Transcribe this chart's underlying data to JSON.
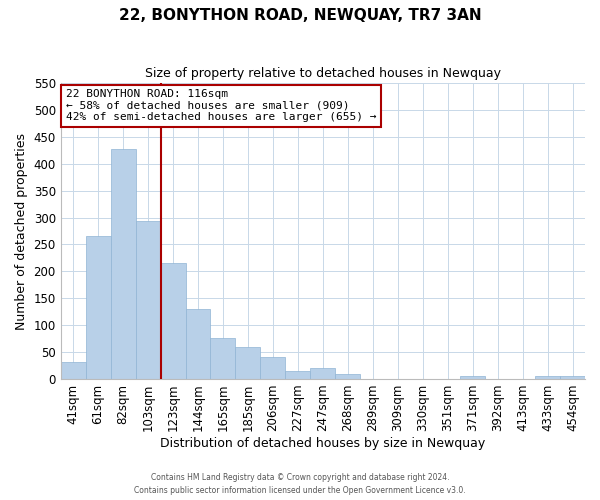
{
  "title": "22, BONYTHON ROAD, NEWQUAY, TR7 3AN",
  "subtitle": "Size of property relative to detached houses in Newquay",
  "xlabel": "Distribution of detached houses by size in Newquay",
  "ylabel": "Number of detached properties",
  "bar_labels": [
    "41sqm",
    "61sqm",
    "82sqm",
    "103sqm",
    "123sqm",
    "144sqm",
    "165sqm",
    "185sqm",
    "206sqm",
    "227sqm",
    "247sqm",
    "268sqm",
    "289sqm",
    "309sqm",
    "330sqm",
    "351sqm",
    "371sqm",
    "392sqm",
    "413sqm",
    "433sqm",
    "454sqm"
  ],
  "bar_values": [
    32,
    265,
    428,
    293,
    215,
    130,
    76,
    59,
    40,
    15,
    21,
    10,
    0,
    0,
    0,
    0,
    5,
    0,
    0,
    5,
    5
  ],
  "bar_color": "#b8d0e8",
  "bar_edge_color": "#90b4d4",
  "vline_x_index": 3.5,
  "vline_color": "#aa0000",
  "ylim": [
    0,
    550
  ],
  "yticks": [
    0,
    50,
    100,
    150,
    200,
    250,
    300,
    350,
    400,
    450,
    500,
    550
  ],
  "annotation_title": "22 BONYTHON ROAD: 116sqm",
  "annotation_line1": "← 58% of detached houses are smaller (909)",
  "annotation_line2": "42% of semi-detached houses are larger (655) →",
  "annotation_box_facecolor": "#ffffff",
  "annotation_box_edgecolor": "#aa0000",
  "grid_color": "#c8d8e8",
  "footer_line1": "Contains HM Land Registry data © Crown copyright and database right 2024.",
  "footer_line2": "Contains public sector information licensed under the Open Government Licence v3.0."
}
